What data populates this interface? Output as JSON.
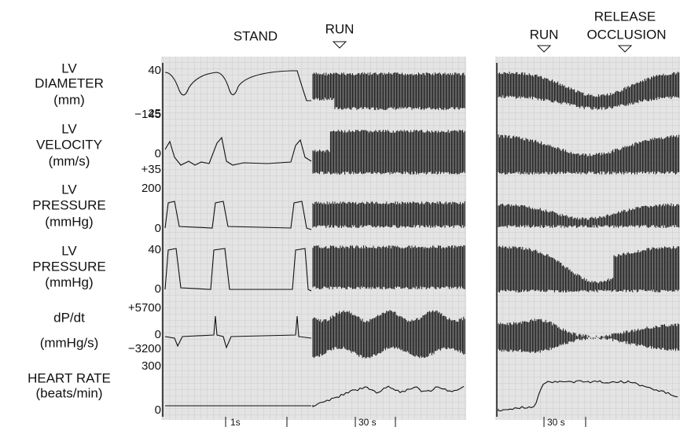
{
  "annotations": {
    "stand": "STAND",
    "run_left": "RUN",
    "run_right": "RUN",
    "release": "RELEASE",
    "occlusion": "OCCLUSION"
  },
  "channels": [
    {
      "label": [
        "LV",
        "DIAMETER",
        "(mm)"
      ],
      "scale": [
        "40",
        "25"
      ]
    },
    {
      "label": [
        "LV",
        "VELOCITY",
        "(mm/s)"
      ],
      "scale": [
        "−145",
        "0",
        "+35"
      ]
    },
    {
      "label": [
        "LV",
        "PRESSURE",
        "(mmHg)"
      ],
      "scale": [
        "200",
        "0"
      ]
    },
    {
      "label": [
        "LV",
        "PRESSURE",
        "(mmHg)"
      ],
      "scale": [
        "40",
        "0"
      ]
    },
    {
      "label": [
        "dP/dt",
        "(mmHg/s)"
      ],
      "scale": [
        "+5700",
        "0",
        "−3200"
      ]
    },
    {
      "label": [
        "HEART RATE",
        "(beats/min)"
      ],
      "scale": [
        "300",
        "0"
      ]
    }
  ],
  "time_scales": [
    "1s",
    "30 s",
    "30 s"
  ]
}
